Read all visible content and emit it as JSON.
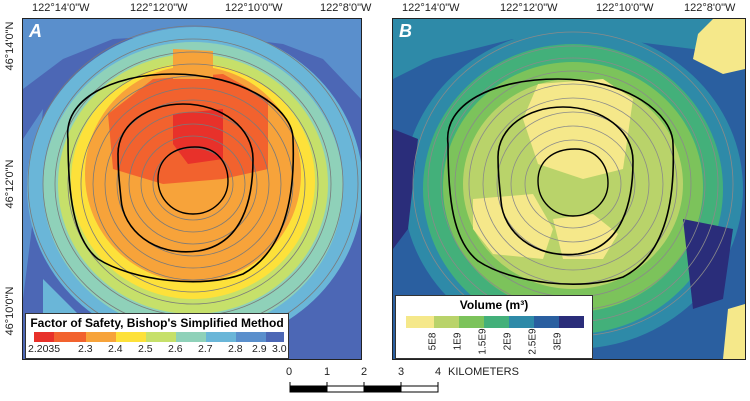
{
  "top_ticks": {
    "a": [
      "122°14'0\"W",
      "122°12'0\"W",
      "122°10'0\"W",
      "122°8'0\"W"
    ],
    "b": [
      "122°14'0\"W",
      "122°12'0\"W",
      "122°10'0\"W",
      "122°8'0\"W"
    ]
  },
  "left_ticks": [
    "46°14'0\"N",
    "46°12'0\"N",
    "46°10'0\"N"
  ],
  "panel_a": {
    "label": "A",
    "legend_title": "Factor of Safety, Bishop's Simplified Method",
    "legend_labels": [
      "2.2035",
      "2.3",
      "2.4",
      "2.5",
      "2.6",
      "2.7",
      "2.8",
      "2.9",
      "3.0"
    ],
    "legend_colors": [
      "#e8312a",
      "#f2622e",
      "#f7a33a",
      "#fde13a",
      "#c6e06a",
      "#8fd1b9",
      "#6ab6d8",
      "#5a8fcc",
      "#4c67b5"
    ]
  },
  "panel_b": {
    "label": "B",
    "legend_title": "Volume (m³)",
    "legend_labels": [
      "5E8",
      "1E9",
      "1.5E9",
      "2E9",
      "2.5E9",
      "3E9"
    ],
    "legend_colors": [
      "#f5e88a",
      "#b9d36a",
      "#7cc35b",
      "#43b07a",
      "#2e8aa8",
      "#2a5fa0",
      "#2a2d7a"
    ]
  },
  "scale": {
    "labels": [
      "0",
      "1",
      "2",
      "3",
      "4"
    ],
    "unit": "KILOMETERS"
  }
}
